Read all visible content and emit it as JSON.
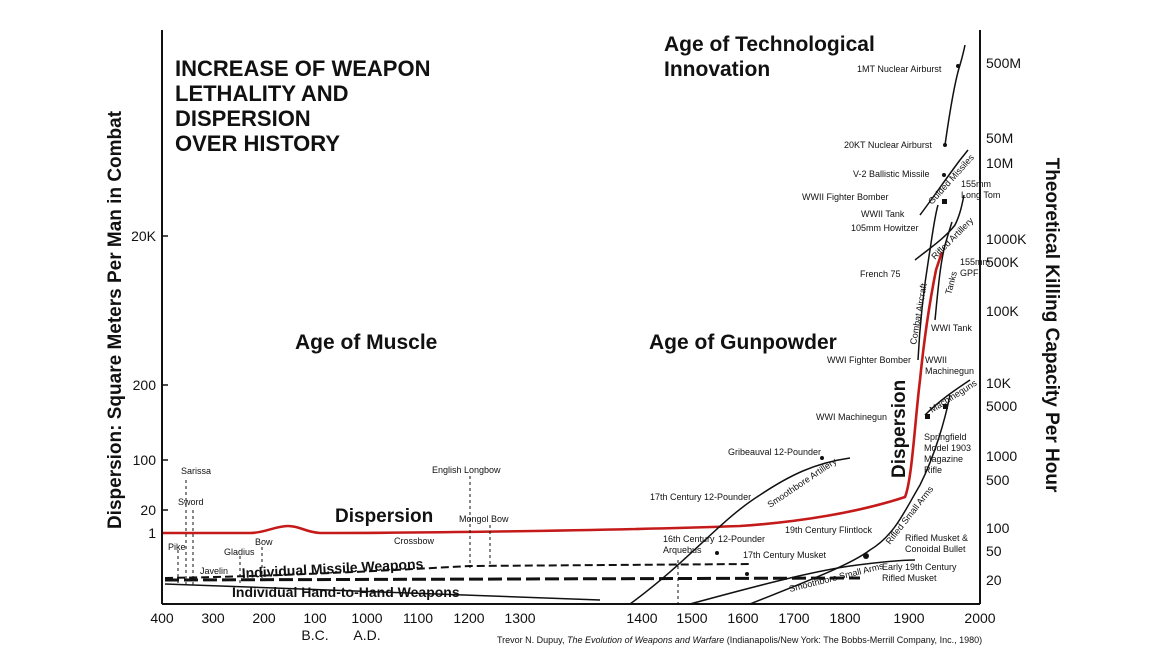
{
  "chart_data": {
    "type": "line",
    "title_lines": [
      "INCREASE OF WEAPON",
      "LETHALITY AND",
      "DISPERSION",
      "OVER HISTORY"
    ],
    "ylabel_left": "Dispersion: Square Meters Per Man in Combat",
    "ylabel_right": "Theoretical Killing Capacity Per Hour",
    "x_ticks": [
      "400",
      "300",
      "200",
      "100",
      "1000",
      "1100",
      "1200",
      "1300",
      "1400",
      "1500",
      "1600",
      "1700",
      "1800",
      "1900",
      "2000"
    ],
    "x_era_labels": [
      "B.C.",
      "A.D."
    ],
    "y_left_ticks": [
      "20K",
      "200",
      "100",
      "20",
      "1"
    ],
    "y_right_ticks": [
      "500M",
      "50M",
      "10M",
      "1000K",
      "500K",
      "100K",
      "10K",
      "5000",
      "1000",
      "500",
      "100",
      "50",
      "20"
    ],
    "ages": [
      "Age of Muscle",
      "Age of Gunpowder",
      "Age of Technological",
      "Innovation"
    ],
    "series": [
      {
        "name": "Dispersion",
        "color": "#c41a1a"
      },
      {
        "name": "Individual Missile Weapons"
      },
      {
        "name": "Individual Hand-to-Hand Weapons"
      },
      {
        "name": "Smoothbore Artillery"
      },
      {
        "name": "Smoothbore Small Arms"
      },
      {
        "name": "Rifled Small Arms"
      },
      {
        "name": "Machineguns"
      },
      {
        "name": "Combat Aircraft"
      },
      {
        "name": "Tanks"
      },
      {
        "name": "Rifled Artillery"
      },
      {
        "name": "Guided Missiles"
      }
    ],
    "annotations": {
      "sarissa": "Sarissa",
      "sword": "Sword",
      "pike": "Pike",
      "bow": "Bow",
      "gladius": "Gladius",
      "javelin": "Javelin",
      "english_longbow": "English Longbow",
      "mongol_bow": "Mongol Bow",
      "crossbow": "Crossbow",
      "arquebus": "16th Century\nArquebus",
      "pounder17": "17th Century 12-Pounder",
      "pounder16": "16th Century 12-Pounder",
      "gribeauval": "Gribeauval 12-Pounder",
      "musket17": "17th Century Musket",
      "flintlock": "19th Century Flintlock",
      "early19": "Early 19th Century\nRifled Musket",
      "conoidal": "Rifled Musket &\nConoidal Bullet",
      "springfield": "Springfield\nModel 1903\nMagazine\nRifle",
      "wwi_mg": "WWI Machinegun",
      "wwii_mg": "WWII\nMachinegun",
      "wwi_fighter": "WWI Fighter Bomber",
      "wwi_tank": "WWI Tank",
      "french75": "French 75",
      "gpf": "155mm\nGPF",
      "howitzer": "105mm Howitzer",
      "wwii_tank": "WWII Tank",
      "wwii_fighter": "WWII Fighter Bomber",
      "v2": "V-2 Ballistic Missile",
      "longtom": "155mm\nLong Tom",
      "kt20": "20KT Nuclear Airburst",
      "mt1": "1MT Nuclear Airburst"
    },
    "source": [
      "Trevor N. Dupuy, ",
      "The Evolution of Weapons  and Warfare",
      " (Indianapolis/New York: The Bobbs-Merrill Company, Inc., 1980)"
    ]
  }
}
